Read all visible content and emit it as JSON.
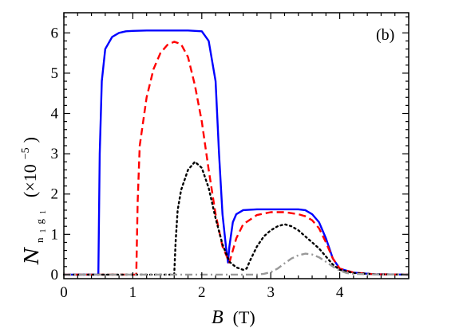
{
  "chart_data": {
    "type": "line",
    "title": "",
    "panel_label": "(b)",
    "xlabel": {
      "symbol": "B",
      "unit": "(T)"
    },
    "ylabel": {
      "symbol": "N",
      "subscript_a": "n",
      "subscript_b": "1",
      "subscript_c": "g",
      "subscript_d": "1",
      "factor_open": "(×10",
      "factor_exp": "−5",
      "factor_close": ")"
    },
    "xlim": [
      0,
      5
    ],
    "ylim": [
      -0.1,
      6.5
    ],
    "x_ticks": [
      0,
      1,
      2,
      3,
      4
    ],
    "y_ticks": [
      0,
      1,
      2,
      3,
      4,
      5,
      6
    ],
    "grid": false,
    "legend": "none",
    "series": [
      {
        "color": "#0000ff",
        "dash": "solid",
        "x": [
          0,
          0.5,
          0.52,
          0.55,
          0.6,
          0.7,
          0.8,
          0.9,
          1.0,
          1.2,
          1.5,
          1.8,
          2.0,
          2.1,
          2.2,
          2.25,
          2.3,
          2.35,
          2.38,
          2.4,
          2.45,
          2.5,
          2.6,
          2.8,
          3.0,
          3.2,
          3.4,
          3.5,
          3.6,
          3.7,
          3.8,
          3.9,
          4.0,
          4.2,
          4.5,
          5.0
        ],
        "y": [
          0,
          0,
          3.0,
          4.8,
          5.6,
          5.9,
          6.0,
          6.04,
          6.05,
          6.06,
          6.06,
          6.06,
          6.04,
          5.8,
          4.8,
          3.0,
          1.5,
          0.7,
          0.3,
          0.7,
          1.3,
          1.5,
          1.6,
          1.62,
          1.62,
          1.62,
          1.62,
          1.6,
          1.5,
          1.3,
          0.9,
          0.4,
          0.15,
          0.05,
          0.01,
          0
        ]
      },
      {
        "color": "#ff0000",
        "dash": "dashed",
        "x": [
          0,
          1.05,
          1.07,
          1.1,
          1.2,
          1.3,
          1.4,
          1.5,
          1.6,
          1.7,
          1.8,
          1.9,
          2.0,
          2.1,
          2.2,
          2.3,
          2.4,
          2.45,
          2.5,
          2.6,
          2.8,
          3.0,
          3.2,
          3.4,
          3.5,
          3.6,
          3.7,
          3.8,
          3.9,
          4.0,
          4.2,
          4.5,
          5.0
        ],
        "y": [
          0,
          0,
          1.8,
          3.2,
          4.4,
          5.1,
          5.5,
          5.7,
          5.78,
          5.72,
          5.4,
          4.7,
          3.8,
          2.6,
          1.5,
          0.7,
          0.3,
          0.6,
          0.9,
          1.25,
          1.48,
          1.55,
          1.55,
          1.5,
          1.45,
          1.35,
          1.15,
          0.8,
          0.4,
          0.15,
          0.05,
          0.01,
          0
        ]
      },
      {
        "color": "#000000",
        "dash": "dotted",
        "x": [
          0,
          1.6,
          1.62,
          1.65,
          1.7,
          1.8,
          1.9,
          2.0,
          2.1,
          2.2,
          2.3,
          2.4,
          2.5,
          2.6,
          2.65,
          2.7,
          2.8,
          2.9,
          3.0,
          3.1,
          3.2,
          3.3,
          3.4,
          3.5,
          3.6,
          3.7,
          3.8,
          3.9,
          4.0,
          4.2,
          4.5,
          5.0
        ],
        "y": [
          0,
          0,
          0.8,
          1.6,
          2.1,
          2.6,
          2.8,
          2.65,
          2.15,
          1.4,
          0.75,
          0.32,
          0.18,
          0.12,
          0.15,
          0.35,
          0.7,
          0.95,
          1.1,
          1.2,
          1.25,
          1.2,
          1.1,
          0.95,
          0.8,
          0.65,
          0.45,
          0.25,
          0.12,
          0.04,
          0.01,
          0
        ]
      },
      {
        "color": "#999999",
        "dash": "dashdot",
        "x": [
          0,
          2.8,
          2.9,
          3.0,
          3.1,
          3.2,
          3.3,
          3.4,
          3.5,
          3.6,
          3.7,
          3.8,
          3.9,
          4.0,
          4.1,
          4.2,
          4.5,
          5.0
        ],
        "y": [
          0,
          0,
          0.02,
          0.06,
          0.15,
          0.28,
          0.4,
          0.48,
          0.52,
          0.5,
          0.43,
          0.32,
          0.2,
          0.1,
          0.04,
          0.02,
          0.005,
          0
        ]
      }
    ]
  }
}
